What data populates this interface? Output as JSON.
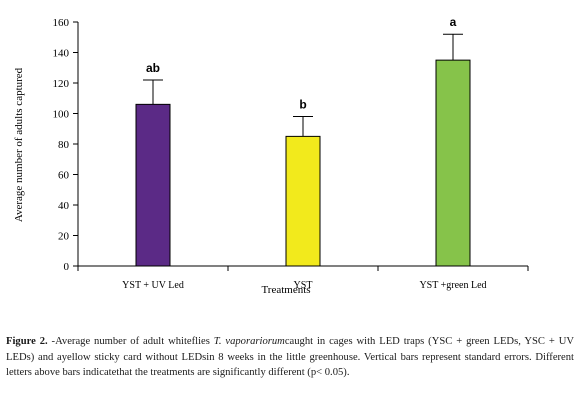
{
  "chart_data": {
    "type": "bar",
    "ylabel": "Average number of adults captured",
    "xlabel": "Treatments",
    "ylim": [
      0,
      160
    ],
    "yticks": [
      0,
      20,
      40,
      60,
      80,
      100,
      120,
      140,
      160
    ],
    "categories": [
      "YST + UV Led",
      "YST",
      "YST +green Led"
    ],
    "values": [
      106,
      85,
      135
    ],
    "errors": [
      16,
      13,
      17
    ],
    "letters": [
      "ab",
      "b",
      "a"
    ],
    "colors": [
      "#5b2a86",
      "#f2ea1c",
      "#86c34a"
    ],
    "grid": false
  },
  "caption": {
    "label": "Figure 2.",
    "part1": " -Average number of adult whiteflies ",
    "species": "T. vaporariorum",
    "part2": "caught in cages with LED traps (YSC + green LEDs, YSC + UV LEDs) and ayellow sticky card without LEDsin 8 weeks in the little greenhouse. Vertical bars represent standard errors. Different letters above bars indicatethat the treatments are significantly different (p< 0.05)."
  }
}
